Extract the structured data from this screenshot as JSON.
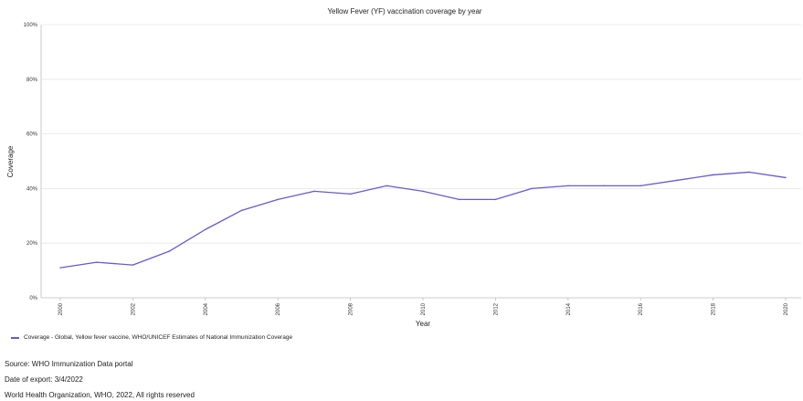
{
  "chart_data": {
    "type": "line",
    "title": "Yellow Fever (YF) vaccination coverage by year",
    "xlabel": "Year",
    "ylabel": "Coverage",
    "x": [
      2000,
      2001,
      2002,
      2003,
      2004,
      2005,
      2006,
      2007,
      2008,
      2009,
      2010,
      2011,
      2012,
      2013,
      2014,
      2015,
      2016,
      2017,
      2018,
      2019,
      2020
    ],
    "x_tick_labels": [
      "2000",
      "2002",
      "2004",
      "2006",
      "2008",
      "2010",
      "2012",
      "2014",
      "2016",
      "2018",
      "2020"
    ],
    "y_tick_labels": [
      "0%",
      "20%",
      "40%",
      "60%",
      "80%",
      "100%"
    ],
    "ylim": [
      0,
      100
    ],
    "grid": true,
    "legend_position": "bottom-left",
    "series": [
      {
        "name": "Coverage - Global, Yellow fever vaccine, WHO/UNICEF Estimates of National Immunization Coverage",
        "color": "#6a5acd",
        "values": [
          11,
          13,
          12,
          17,
          25,
          32,
          36,
          39,
          38,
          41,
          39,
          36,
          36,
          40,
          41,
          41,
          41,
          43,
          45,
          46,
          44
        ]
      }
    ]
  },
  "footer": {
    "source": "Source: WHO Immunization Data portal",
    "date": "Date of export: 3/4/2022",
    "copyright": "World Health Organization, WHO, 2022, All rights reserved"
  }
}
